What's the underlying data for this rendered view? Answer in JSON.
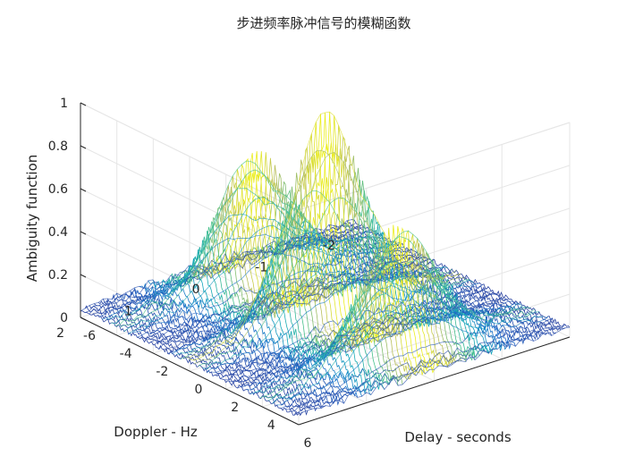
{
  "chart_data": {
    "type": "surface",
    "title": "步进频率脉冲信号的模糊函数",
    "xlabel": "Delay - seconds",
    "ylabel": "Doppler - Hz",
    "zlabel": "Ambiguity function",
    "xlim": [
      -6,
      6
    ],
    "ylim": [
      -2,
      2
    ],
    "zlim": [
      0,
      1
    ],
    "xticks": [
      "-6",
      "-4",
      "-2",
      "0",
      "2",
      "4",
      "6"
    ],
    "yticks": [
      "-2",
      "-1",
      "0",
      "1",
      "2"
    ],
    "zticks": [
      "0",
      "0.2",
      "0.4",
      "0.6",
      "0.8",
      "1"
    ],
    "grid": true,
    "colormap": "parula",
    "colormap_colors": [
      "#352a87",
      "#1e6ecd",
      "#0fa5bc",
      "#47c08a",
      "#b7bd5c",
      "#f9fb0e"
    ],
    "peaks": [
      {
        "delay": -4,
        "doppler": 0,
        "amplitude": 0.65
      },
      {
        "delay": 0,
        "doppler": 0,
        "amplitude": 1.0
      },
      {
        "delay": 4,
        "doppler": 0,
        "amplitude": 0.65
      }
    ]
  }
}
